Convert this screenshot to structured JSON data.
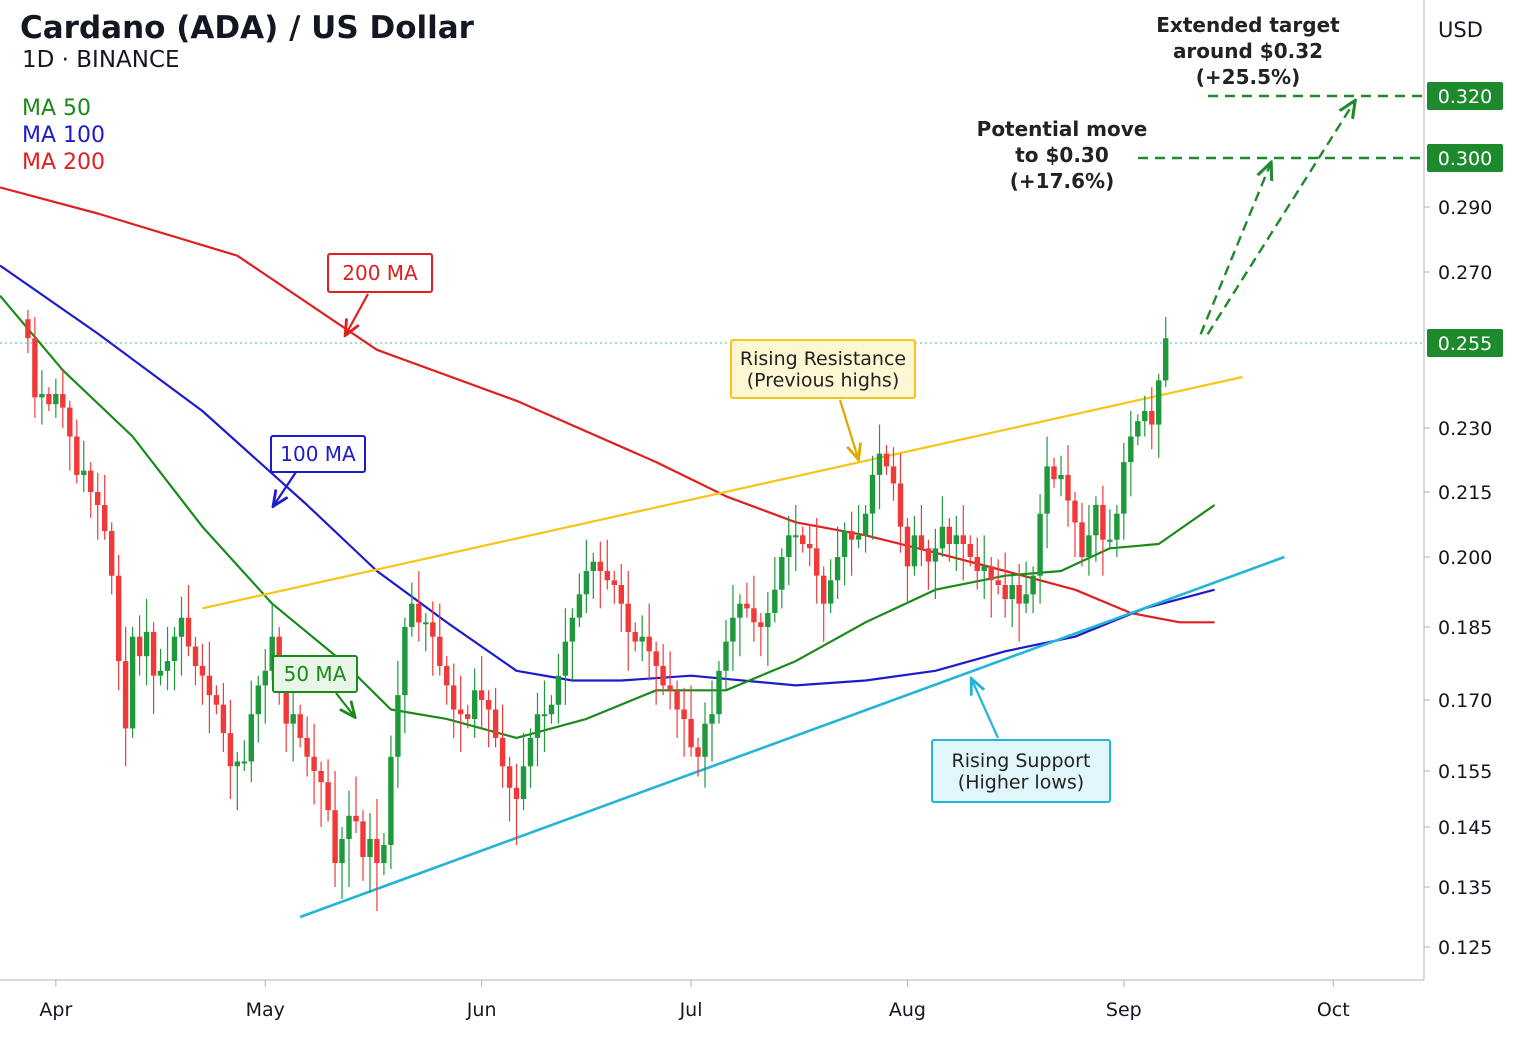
{
  "header": {
    "title": "Cardano (ADA) / US Dollar",
    "subtitle": "1D · BINANCE",
    "currency": "USD"
  },
  "legend": [
    {
      "label": "MA 50",
      "color": "#1a8a1a"
    },
    {
      "label": "MA 100",
      "color": "#1c1ccc"
    },
    {
      "label": "MA 200",
      "color": "#e02020"
    }
  ],
  "colors": {
    "up": "#1e9a3c",
    "down": "#f03a3a",
    "ma50": "#1a8a1a",
    "ma100": "#1c1ccc",
    "ma200": "#e02020",
    "resistance": "#f5c518",
    "support": "#22b5d6",
    "target": "#1e8a2e"
  },
  "annotations": {
    "ma200_label": "200 MA",
    "ma100_label": "100 MA",
    "ma50_label": "50 MA",
    "resistance": [
      "Rising Resistance",
      "(Previous highs)"
    ],
    "support": [
      "Rising Support",
      "(Higher lows)"
    ],
    "target1": [
      "Potential move",
      "to $0.30",
      "(+17.6%)"
    ],
    "target2": [
      "Extended target",
      "around $0.32",
      "(+25.5%)"
    ]
  },
  "chart_data": {
    "type": "candlestick",
    "title": "Cardano (ADA) / US Dollar",
    "x_ticks": [
      {
        "label": "Apr",
        "day": 4
      },
      {
        "label": "May",
        "day": 34
      },
      {
        "label": "Jun",
        "day": 65
      },
      {
        "label": "Jul",
        "day": 95
      },
      {
        "label": "Aug",
        "day": 126
      },
      {
        "label": "Sep",
        "day": 157
      },
      {
        "label": "Oct",
        "day": 187
      }
    ],
    "x_range": [
      -4,
      200
    ],
    "y_ticks": [
      "0.290",
      "0.270",
      "0.230",
      "0.215",
      "0.200",
      "0.185",
      "0.170",
      "0.155",
      "0.145",
      "0.135",
      "0.125"
    ],
    "y_badges": [
      {
        "value": 0.32,
        "label": "0.320"
      },
      {
        "value": 0.3,
        "label": "0.300"
      },
      {
        "value": 0.255,
        "label": "0.255"
      }
    ],
    "current_price": 0.255,
    "closes": [
      0.256,
      0.239,
      0.24,
      0.237,
      0.24,
      0.236,
      0.228,
      0.219,
      0.22,
      0.215,
      0.212,
      0.206,
      0.196,
      0.178,
      0.164,
      0.183,
      0.179,
      0.184,
      0.175,
      0.176,
      0.178,
      0.183,
      0.187,
      0.181,
      0.177,
      0.175,
      0.171,
      0.169,
      0.163,
      0.156,
      0.157,
      0.157,
      0.167,
      0.173,
      0.176,
      0.183,
      0.173,
      0.165,
      0.167,
      0.162,
      0.158,
      0.155,
      0.153,
      0.148,
      0.139,
      0.143,
      0.147,
      0.146,
      0.14,
      0.143,
      0.139,
      0.142,
      0.158,
      0.171,
      0.185,
      0.19,
      0.186,
      0.186,
      0.183,
      0.177,
      0.173,
      0.168,
      0.167,
      0.166,
      0.172,
      0.17,
      0.168,
      0.162,
      0.156,
      0.152,
      0.15,
      0.156,
      0.162,
      0.167,
      0.167,
      0.169,
      0.175,
      0.182,
      0.187,
      0.192,
      0.197,
      0.199,
      0.197,
      0.195,
      0.194,
      0.19,
      0.184,
      0.182,
      0.183,
      0.18,
      0.177,
      0.173,
      0.172,
      0.168,
      0.166,
      0.16,
      0.158,
      0.165,
      0.167,
      0.176,
      0.182,
      0.187,
      0.19,
      0.189,
      0.186,
      0.185,
      0.188,
      0.193,
      0.2,
      0.205,
      0.205,
      0.203,
      0.202,
      0.196,
      0.19,
      0.195,
      0.2,
      0.206,
      0.204,
      0.205,
      0.21,
      0.219,
      0.224,
      0.221,
      0.217,
      0.207,
      0.198,
      0.205,
      0.202,
      0.199,
      0.202,
      0.207,
      0.203,
      0.205,
      0.203,
      0.2,
      0.197,
      0.198,
      0.195,
      0.194,
      0.191,
      0.194,
      0.19,
      0.192,
      0.196,
      0.21,
      0.221,
      0.218,
      0.219,
      0.213,
      0.208,
      0.2,
      0.205,
      0.212,
      0.204,
      0.204,
      0.21,
      0.222,
      0.228,
      0.232,
      0.235,
      0.231,
      0.244,
      0.256
    ],
    "ma200": [
      [
        -4,
        0.294
      ],
      [
        10,
        0.288
      ],
      [
        30,
        0.275
      ],
      [
        50,
        0.253
      ],
      [
        70,
        0.238
      ],
      [
        90,
        0.222
      ],
      [
        100,
        0.214
      ],
      [
        110,
        0.208
      ],
      [
        120,
        0.205
      ],
      [
        130,
        0.201
      ],
      [
        140,
        0.197
      ],
      [
        150,
        0.193
      ],
      [
        158,
        0.188
      ],
      [
        165,
        0.186
      ],
      [
        170,
        0.186
      ]
    ],
    "ma100": [
      [
        -4,
        0.272
      ],
      [
        10,
        0.257
      ],
      [
        25,
        0.235
      ],
      [
        40,
        0.212
      ],
      [
        50,
        0.197
      ],
      [
        60,
        0.186
      ],
      [
        70,
        0.176
      ],
      [
        78,
        0.174
      ],
      [
        85,
        0.174
      ],
      [
        95,
        0.175
      ],
      [
        110,
        0.173
      ],
      [
        120,
        0.174
      ],
      [
        130,
        0.176
      ],
      [
        140,
        0.18
      ],
      [
        150,
        0.183
      ],
      [
        160,
        0.189
      ],
      [
        170,
        0.193
      ]
    ],
    "ma50": [
      [
        -4,
        0.265
      ],
      [
        5,
        0.247
      ],
      [
        15,
        0.228
      ],
      [
        25,
        0.207
      ],
      [
        35,
        0.19
      ],
      [
        45,
        0.178
      ],
      [
        52,
        0.168
      ],
      [
        60,
        0.166
      ],
      [
        70,
        0.162
      ],
      [
        80,
        0.166
      ],
      [
        90,
        0.172
      ],
      [
        100,
        0.172
      ],
      [
        110,
        0.178
      ],
      [
        120,
        0.186
      ],
      [
        130,
        0.193
      ],
      [
        140,
        0.196
      ],
      [
        148,
        0.197
      ],
      [
        155,
        0.202
      ],
      [
        162,
        0.203
      ],
      [
        170,
        0.212
      ]
    ],
    "resistance_line": [
      [
        25,
        0.189
      ],
      [
        174,
        0.245
      ]
    ],
    "support_line": [
      [
        39,
        0.13
      ],
      [
        180,
        0.2
      ]
    ],
    "projection_1": [
      [
        168,
        0.256
      ],
      [
        178,
        0.3
      ]
    ],
    "projection_2": [
      [
        169,
        0.256
      ],
      [
        190,
        0.32
      ]
    ]
  }
}
